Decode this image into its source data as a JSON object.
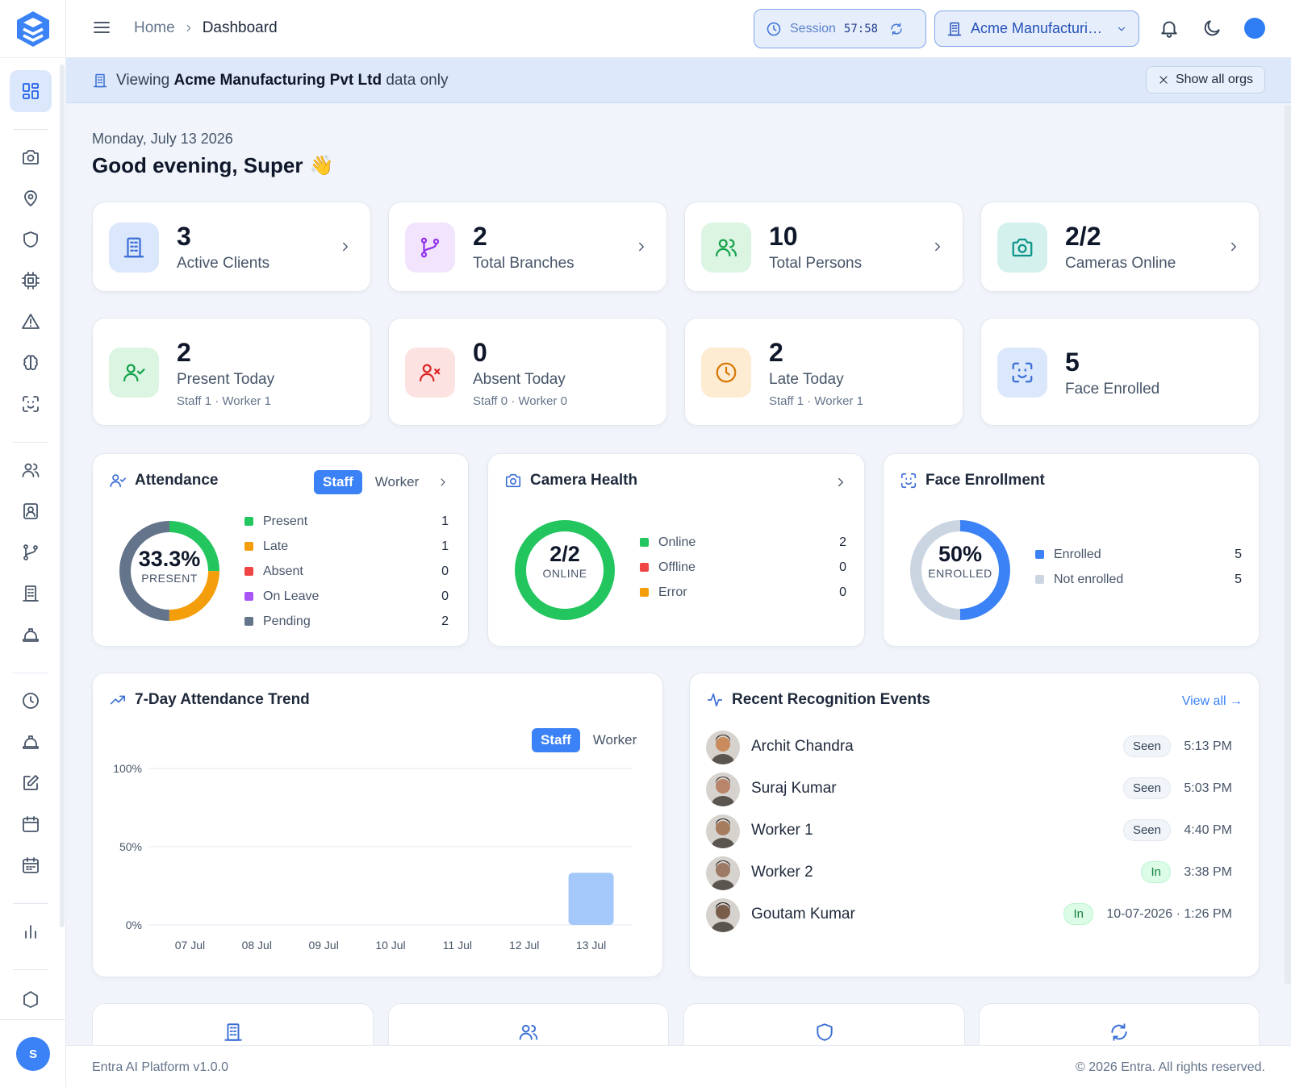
{
  "header": {
    "breadcrumb": {
      "home": "Home",
      "current": "Dashboard"
    },
    "session": {
      "label": "Session",
      "time": "57:58"
    },
    "org_selector": {
      "value": "Acme Manufacturing Pvt Ltd"
    }
  },
  "banner": {
    "prefix": "Viewing",
    "org": "Acme Manufacturing Pvt Ltd",
    "suffix": "data only",
    "show_all": "Show all orgs"
  },
  "greeting": {
    "date": "Monday, July 13 2026",
    "text": "Good evening, Super",
    "emoji": "👋"
  },
  "stats_row1": [
    {
      "value": "3",
      "label": "Active Clients",
      "icon": "building-icon",
      "color": "#3b6fd6"
    },
    {
      "value": "2",
      "label": "Total Branches",
      "icon": "git-branch-icon",
      "color": "#9333ea"
    },
    {
      "value": "10",
      "label": "Total Persons",
      "icon": "users-icon",
      "color": "#16a34a"
    },
    {
      "value": "2/2",
      "label": "Cameras Online",
      "icon": "camera-icon",
      "color": "#0d9488"
    }
  ],
  "stats_row2": [
    {
      "value": "2",
      "label": "Present Today",
      "sub": "Staff 1 · Worker 1",
      "icon": "user-check-icon",
      "color": "#16a34a"
    },
    {
      "value": "0",
      "label": "Absent Today",
      "sub": "Staff 0 · Worker 0",
      "icon": "user-x-icon",
      "color": "#dc2626"
    },
    {
      "value": "2",
      "label": "Late Today",
      "sub": "Staff 1 · Worker 1",
      "icon": "clock-icon",
      "color": "#d97706"
    },
    {
      "value": "5",
      "label": "Face Enrolled",
      "sub": "",
      "icon": "face-scan-icon",
      "color": "#3b6fd6"
    }
  ],
  "attendance": {
    "title": "Attendance",
    "tabs": [
      "Staff",
      "Worker"
    ],
    "center_value": "33.3%",
    "center_label": "PRESENT",
    "legend": [
      {
        "label": "Present",
        "value": "1",
        "color": "#22c55e"
      },
      {
        "label": "Late",
        "value": "1",
        "color": "#f59e0b"
      },
      {
        "label": "Absent",
        "value": "0",
        "color": "#ef4444"
      },
      {
        "label": "On Leave",
        "value": "0",
        "color": "#a855f7"
      },
      {
        "label": "Pending",
        "value": "2",
        "color": "#64748b"
      }
    ]
  },
  "camera_health": {
    "title": "Camera Health",
    "center_value": "2/2",
    "center_label": "ONLINE",
    "legend": [
      {
        "label": "Online",
        "value": "2",
        "color": "#22c55e"
      },
      {
        "label": "Offline",
        "value": "0",
        "color": "#ef4444"
      },
      {
        "label": "Error",
        "value": "0",
        "color": "#f59e0b"
      }
    ]
  },
  "face_enrollment": {
    "title": "Face Enrollment",
    "center_value": "50%",
    "center_label": "ENROLLED",
    "legend": [
      {
        "label": "Enrolled",
        "value": "5",
        "color": "#3b82f6"
      },
      {
        "label": "Not enrolled",
        "value": "5",
        "color": "#cbd5e1"
      }
    ]
  },
  "trend": {
    "title": "7-Day Attendance Trend",
    "tabs": [
      "Staff",
      "Worker"
    ]
  },
  "chart_data": {
    "type": "bar",
    "title": "7-Day Attendance Trend",
    "categories": [
      "07 Jul",
      "08 Jul",
      "09 Jul",
      "10 Jul",
      "11 Jul",
      "12 Jul",
      "13 Jul"
    ],
    "values": [
      0,
      0,
      0,
      0,
      0,
      0,
      33.3
    ],
    "y_ticks": [
      "100%",
      "50%",
      "0%"
    ],
    "ylim": [
      0,
      100
    ],
    "grid": true,
    "bar_color": "#a5c8fb"
  },
  "events": {
    "title": "Recent Recognition Events",
    "view_all": "View all →",
    "items": [
      {
        "name": "Archit Chandra",
        "status": "Seen",
        "time": "5:13 PM"
      },
      {
        "name": "Suraj Kumar",
        "status": "Seen",
        "time": "5:03 PM"
      },
      {
        "name": "Worker 1",
        "status": "Seen",
        "time": "4:40 PM"
      },
      {
        "name": "Worker 2",
        "status": "In",
        "time": "3:38 PM"
      },
      {
        "name": "Goutam Kumar",
        "status": "In",
        "time": "10-07-2026 · 1:26 PM"
      }
    ]
  },
  "sidebar": {
    "avatar_initial": "S"
  },
  "footer": {
    "left": "Entra AI Platform v1.0.0",
    "right": "© 2026 Entra. All rights reserved."
  }
}
